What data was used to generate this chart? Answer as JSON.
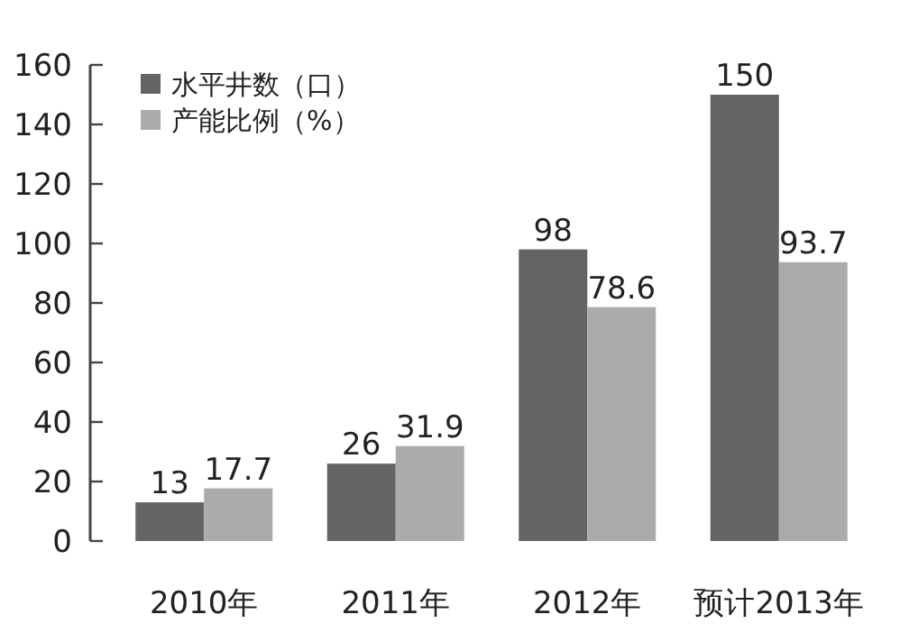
{
  "chart_data": {
    "type": "bar",
    "categories": [
      "2010年",
      "2011年",
      "2012年",
      "预计2013年"
    ],
    "series": [
      {
        "name": "水平井数（口）",
        "color": "#646464",
        "values": [
          13,
          26,
          98,
          150
        ]
      },
      {
        "name": "产能比例（%）",
        "color": "#ababab",
        "values": [
          17.7,
          31.9,
          78.6,
          93.7
        ]
      }
    ],
    "ylim": [
      0,
      160
    ],
    "yticks": [
      0,
      20,
      40,
      60,
      80,
      100,
      120,
      140,
      160
    ],
    "legend": "top left",
    "data_labels": true
  }
}
